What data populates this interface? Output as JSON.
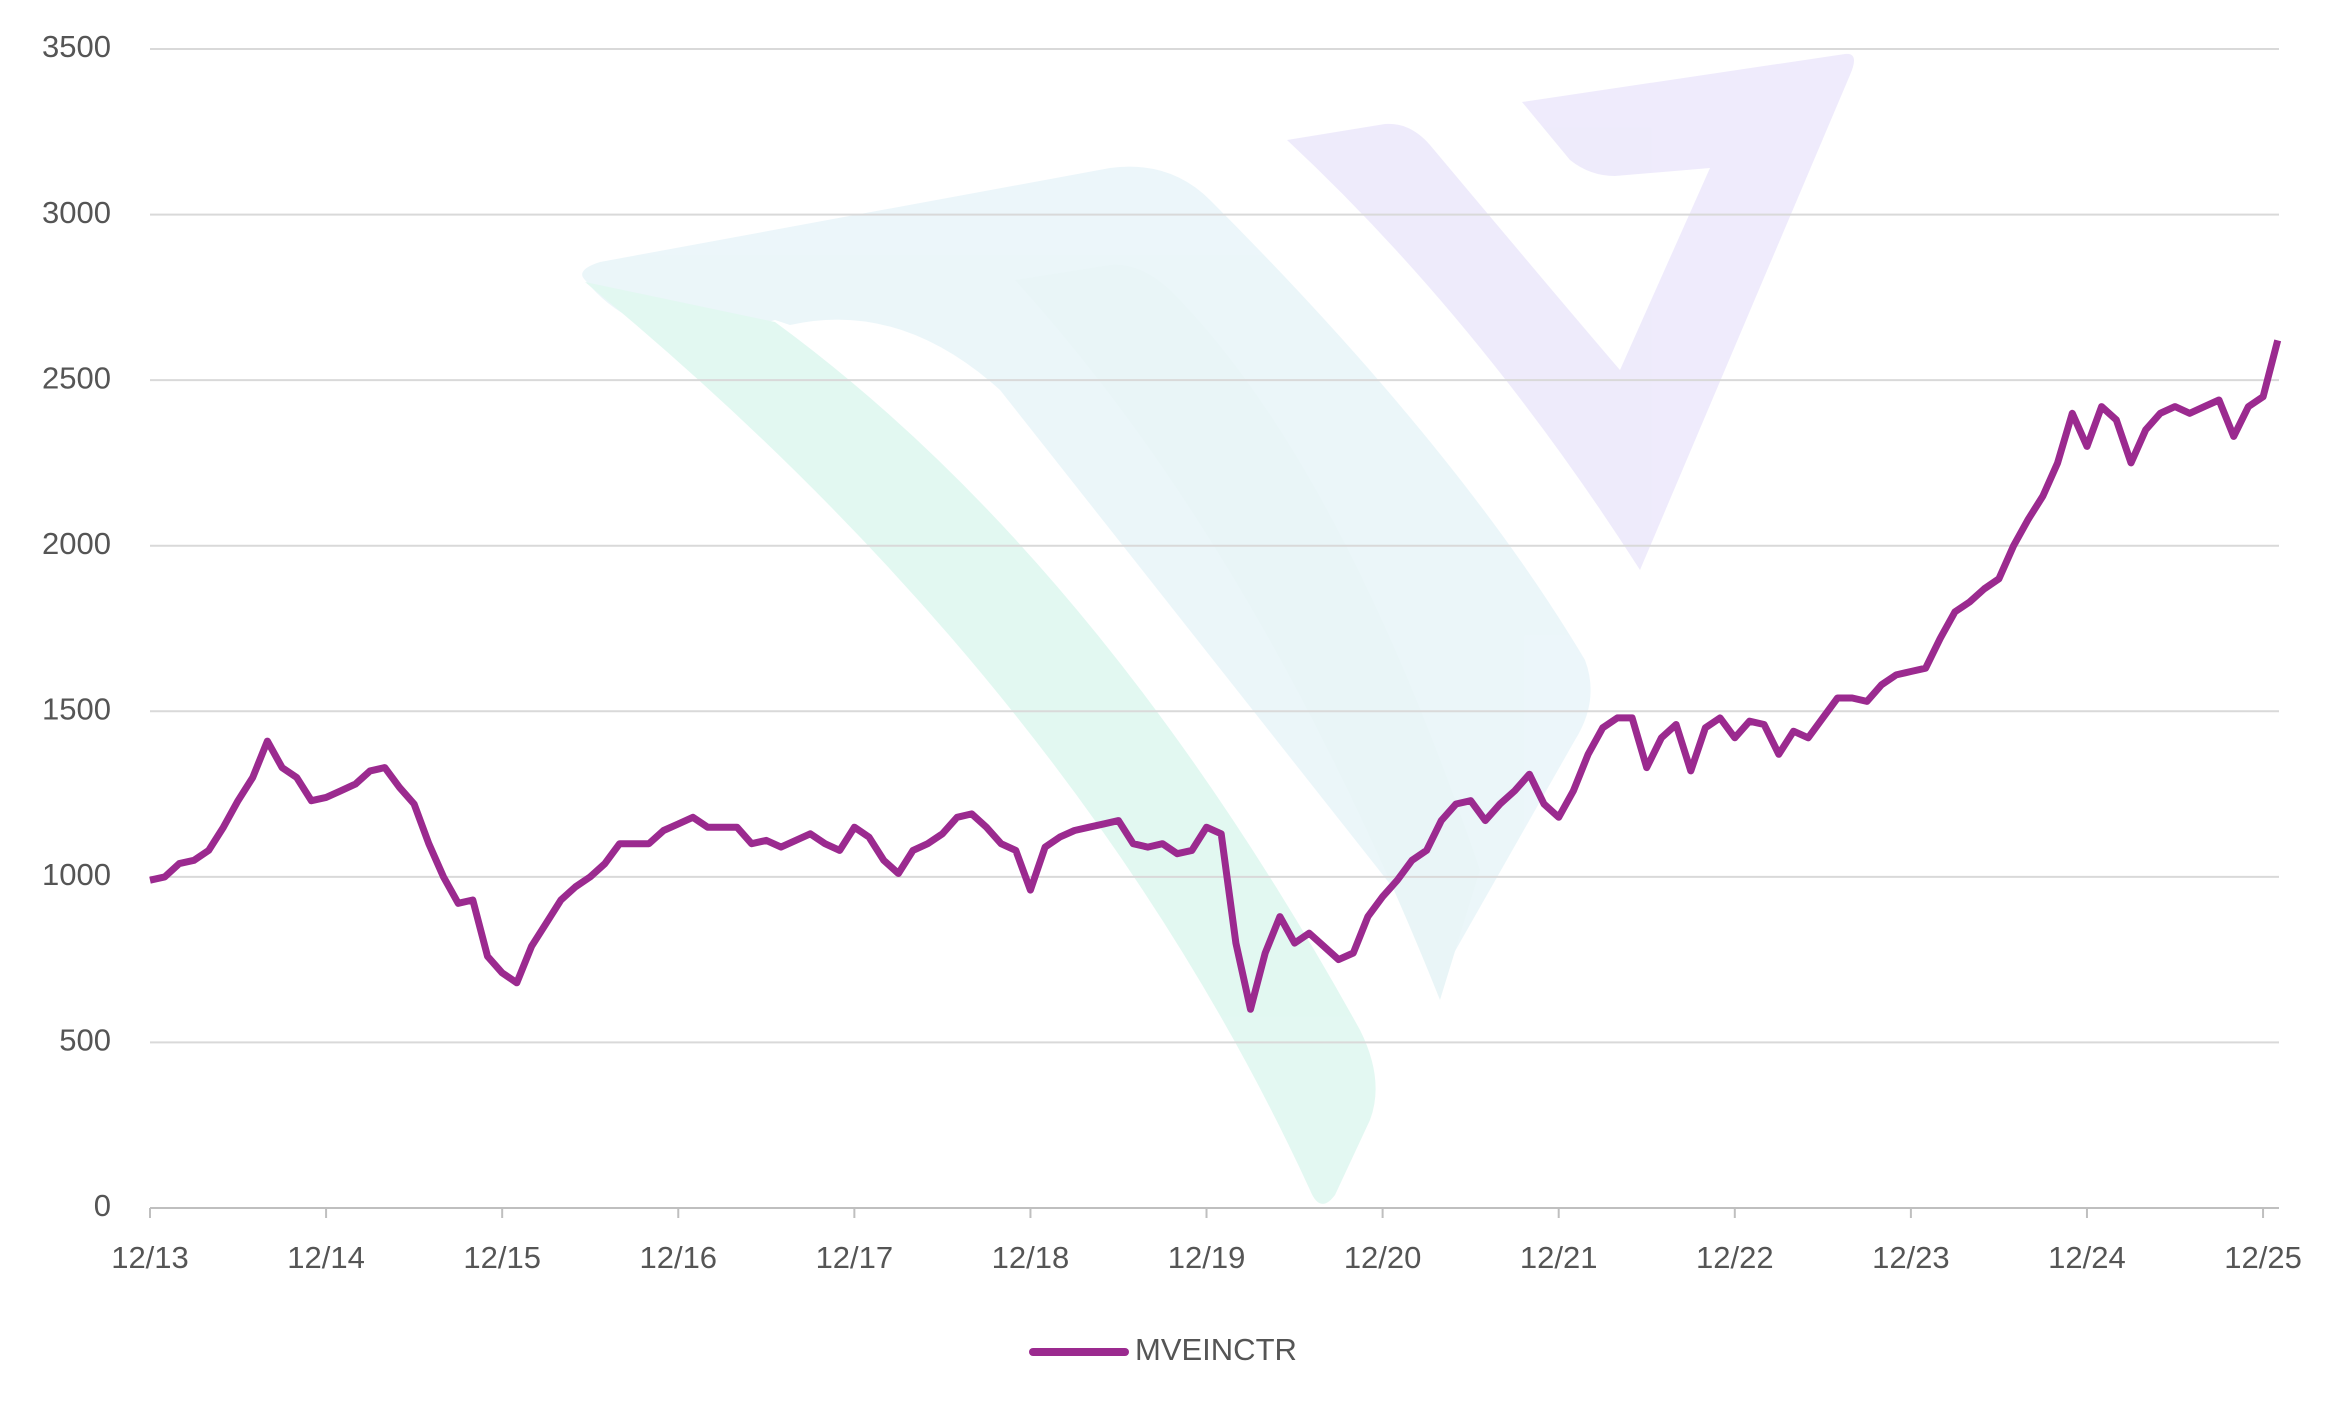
{
  "chart_data": {
    "type": "line",
    "categories": [
      "12/13",
      null,
      null,
      null,
      null,
      null,
      null,
      null,
      null,
      null,
      null,
      null,
      "12/14",
      null,
      null,
      null,
      null,
      null,
      null,
      null,
      null,
      null,
      null,
      null,
      "12/15",
      null,
      null,
      null,
      null,
      null,
      null,
      null,
      null,
      null,
      null,
      null,
      "12/16",
      null,
      null,
      null,
      null,
      null,
      null,
      null,
      null,
      null,
      null,
      null,
      "12/17",
      null,
      null,
      null,
      null,
      null,
      null,
      null,
      null,
      null,
      null,
      null,
      "12/18",
      null,
      null,
      null,
      null,
      null,
      null,
      null,
      null,
      null,
      null,
      null,
      "12/19",
      null,
      null,
      null,
      null,
      null,
      null,
      null,
      null,
      null,
      null,
      null,
      "12/20",
      null,
      null,
      null,
      null,
      null,
      null,
      null,
      null,
      null,
      null,
      null,
      "12/21",
      null,
      null,
      null,
      null,
      null,
      null,
      null,
      null,
      null,
      null,
      null,
      "12/22",
      null,
      null,
      null,
      null,
      null,
      null,
      null,
      null,
      null,
      null,
      null,
      "12/23",
      null,
      null,
      null,
      null,
      null,
      null,
      null,
      null,
      null,
      null,
      null,
      "12/24",
      null,
      null,
      null,
      null,
      null,
      null,
      null,
      null,
      null,
      null,
      null,
      "12/25",
      null
    ],
    "series": [
      {
        "name": "MVEINCTR",
        "color": "#9b2a8f",
        "values": [
          990,
          1000,
          1040,
          1050,
          1080,
          1150,
          1230,
          1300,
          1410,
          1330,
          1300,
          1230,
          1240,
          1260,
          1280,
          1320,
          1330,
          1270,
          1220,
          1100,
          1000,
          920,
          930,
          760,
          710,
          680,
          790,
          860,
          930,
          970,
          1000,
          1040,
          1100,
          1100,
          1100,
          1140,
          1160,
          1180,
          1150,
          1150,
          1150,
          1100,
          1110,
          1090,
          1110,
          1130,
          1100,
          1080,
          1150,
          1120,
          1050,
          1010,
          1080,
          1100,
          1130,
          1180,
          1190,
          1150,
          1100,
          1080,
          960,
          1090,
          1120,
          1140,
          1150,
          1160,
          1170,
          1100,
          1090,
          1100,
          1070,
          1080,
          1150,
          1130,
          800,
          600,
          770,
          880,
          800,
          830,
          790,
          750,
          770,
          880,
          940,
          990,
          1050,
          1080,
          1170,
          1220,
          1230,
          1170,
          1220,
          1260,
          1310,
          1220,
          1180,
          1260,
          1370,
          1450,
          1480,
          1480,
          1330,
          1420,
          1460,
          1320,
          1450,
          1480,
          1420,
          1470,
          1460,
          1370,
          1440,
          1420,
          1480,
          1540,
          1540,
          1530,
          1580,
          1610,
          1620,
          1630,
          1720,
          1800,
          1830,
          1870,
          1900,
          2000,
          2080,
          2150,
          2250,
          2400,
          2300,
          2420,
          2380,
          2250,
          2350,
          2400,
          2420,
          2400,
          2420,
          2440,
          2330,
          2420,
          2450,
          2620
        ]
      }
    ],
    "ylim": [
      0,
      3500
    ],
    "yticks": [
      0,
      500,
      1000,
      1500,
      2000,
      2500,
      3000,
      3500
    ],
    "grid": true,
    "legend": "bottom"
  }
}
